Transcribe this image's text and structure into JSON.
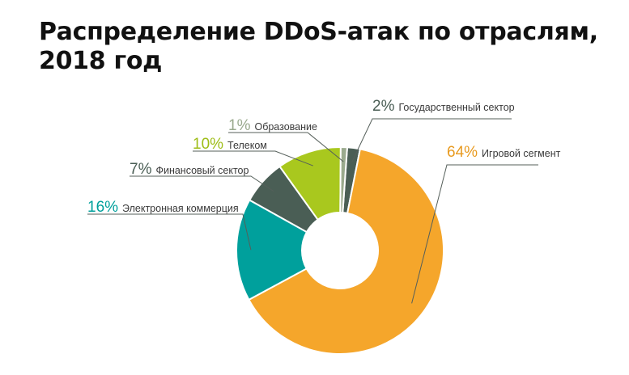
{
  "title_line1": "Распределение DDoS-атак по отраслям,",
  "title_line2": "2018 год",
  "chart_data": {
    "type": "pie",
    "variant": "donut",
    "categories": [
      "Государственный сектор",
      "Игровой сегмент",
      "Электронная коммерция",
      "Финансовый сектор",
      "Телеком",
      "Образование"
    ],
    "values": [
      2,
      64,
      16,
      7,
      10,
      1
    ],
    "percent_labels": [
      "2%",
      "64%",
      "16%",
      "7%",
      "10%",
      "1%"
    ],
    "colors": [
      "#4a5e55",
      "#f5a62b",
      "#00a09c",
      "#4a5e55",
      "#a9c81e",
      "#9aaa8e"
    ],
    "label_colors": [
      "#4a5e55",
      "#e89a1f",
      "#00a09c",
      "#4a5e55",
      "#9ebd16",
      "#9aaa8e"
    ],
    "legend": "callout labels around donut"
  }
}
